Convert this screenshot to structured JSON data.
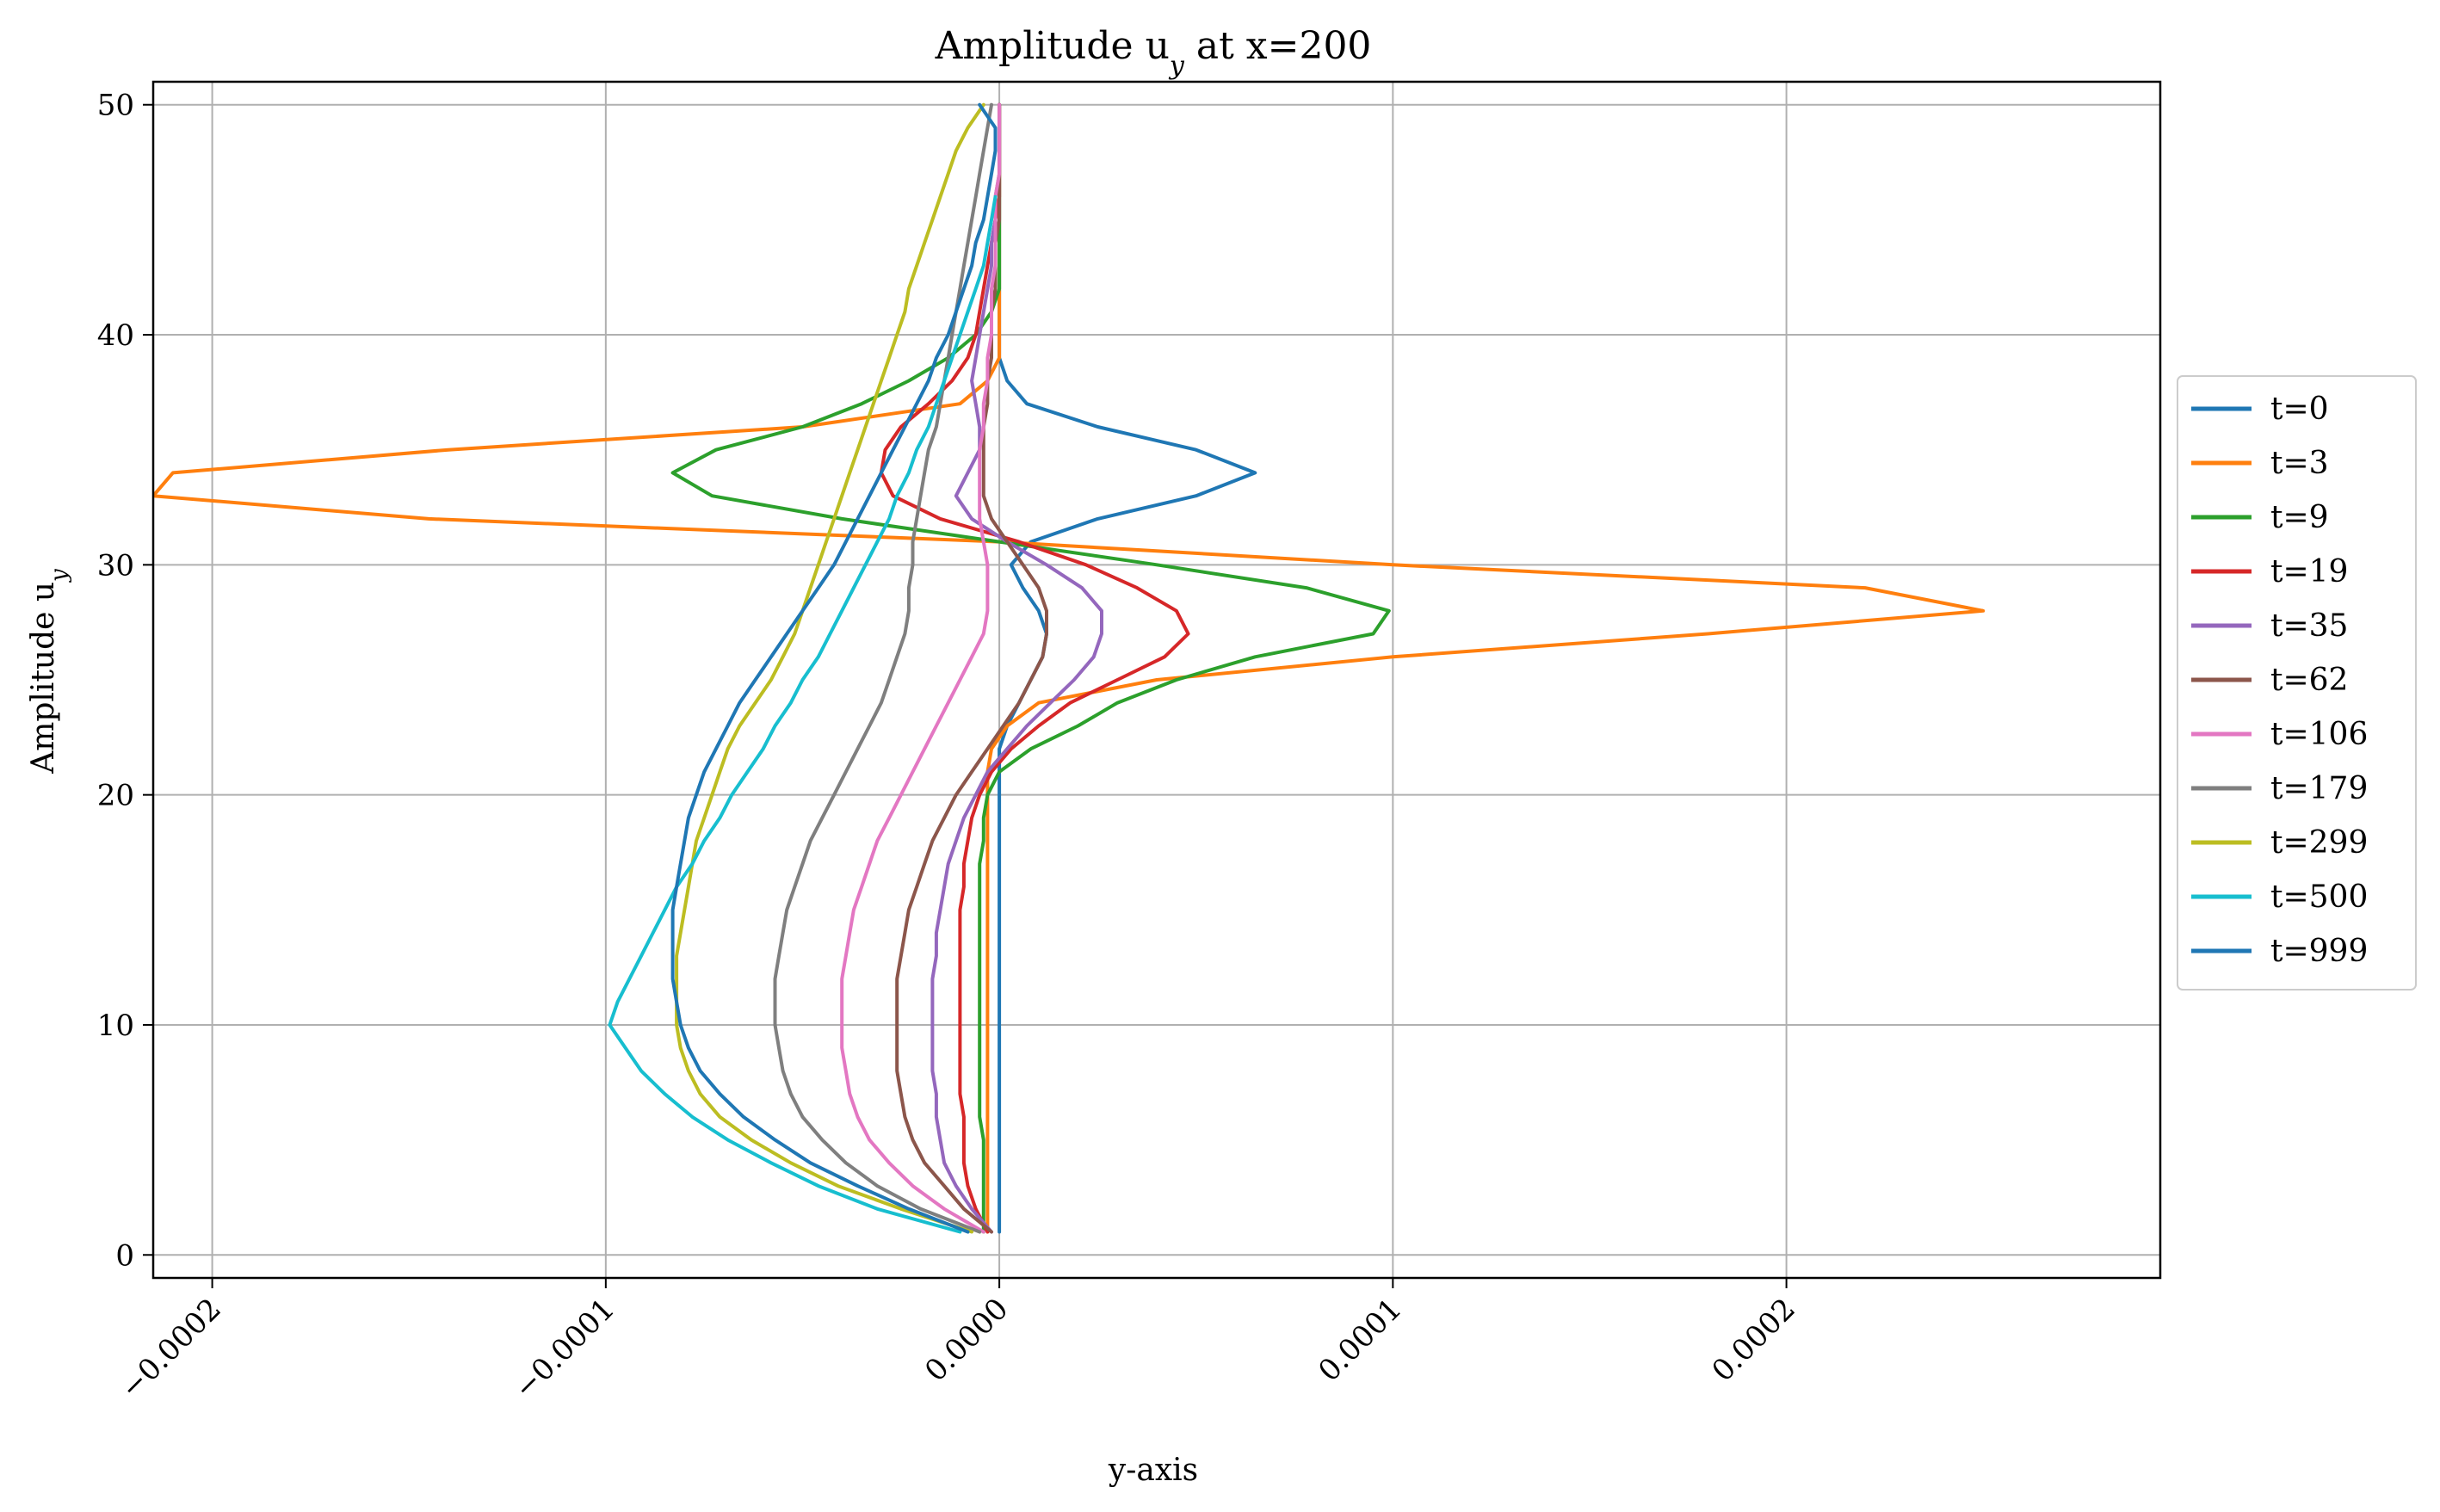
{
  "chart_data": {
    "type": "line",
    "title_main": "Amplitude u",
    "title_sub": "y",
    "title_rest": " at x=200",
    "xlabel": "y-axis",
    "ylabel_main": "Amplitude u",
    "ylabel_sub": "y",
    "xlim": [
      -0.000215,
      0.000295
    ],
    "ylim": [
      -1,
      51
    ],
    "xticks": [
      -0.0002,
      -0.0001,
      0.0,
      0.0001,
      0.0002
    ],
    "xtick_labels": [
      "−0.0002",
      "−0.0001",
      "0.0000",
      "0.0001",
      "0.0002"
    ],
    "yticks": [
      0,
      10,
      20,
      30,
      40,
      50
    ],
    "ytick_labels": [
      "0",
      "10",
      "20",
      "30",
      "40",
      "50"
    ],
    "grid": true,
    "legend_position": "center-right outside",
    "series": [
      {
        "name": "t=0",
        "color": "#1f77b4",
        "x": [
          0,
          0,
          0,
          0,
          0,
          0,
          0,
          0,
          0,
          0,
          0,
          0,
          0,
          0,
          0,
          0,
          0,
          0,
          0,
          0,
          0,
          0,
          2e-06,
          5e-06,
          8e-06,
          1.1e-05,
          1.2e-05,
          1e-05,
          6e-06,
          3e-06,
          8e-06,
          2.5e-05,
          5e-05,
          6.5e-05,
          5e-05,
          2.5e-05,
          7e-06,
          2e-06,
          0,
          0,
          0,
          0,
          0,
          0,
          0,
          0,
          0,
          0,
          0,
          0
        ],
        "y": [
          1,
          2,
          3,
          4,
          5,
          6,
          7,
          8,
          9,
          10,
          11,
          12,
          13,
          14,
          15,
          16,
          17,
          18,
          19,
          20,
          21,
          22,
          23,
          24,
          25,
          26,
          27,
          28,
          29,
          30,
          31,
          32,
          33,
          34,
          35,
          36,
          37,
          38,
          39,
          40,
          41,
          42,
          43,
          44,
          45,
          46,
          47,
          48,
          49,
          50
        ]
      },
      {
        "name": "t=3",
        "color": "#ff7f0e",
        "x": [
          -3e-06,
          -3e-06,
          -3e-06,
          -3e-06,
          -3e-06,
          -3e-06,
          -3e-06,
          -3e-06,
          -3e-06,
          -3e-06,
          -3e-06,
          -3e-06,
          -3e-06,
          -3e-06,
          -3e-06,
          -3e-06,
          -3e-06,
          -3e-06,
          -3e-06,
          -3e-06,
          -3e-06,
          -2e-06,
          2e-06,
          1e-05,
          4e-05,
          0.0001,
          0.00018,
          0.00025,
          0.00022,
          0.0001,
          0.0,
          -0.000145,
          -0.000215,
          -0.00021,
          -0.00014,
          -5e-05,
          -1e-05,
          -3e-06,
          0,
          0,
          0,
          0,
          0,
          0,
          0,
          0,
          0,
          0,
          0,
          0
        ],
        "y": [
          1,
          2,
          3,
          4,
          5,
          6,
          7,
          8,
          9,
          10,
          11,
          12,
          13,
          14,
          15,
          16,
          17,
          18,
          19,
          20,
          21,
          22,
          23,
          24,
          25,
          26,
          27,
          28,
          29,
          30,
          31,
          32,
          33,
          34,
          35,
          36,
          37,
          38,
          39,
          40,
          41,
          42,
          43,
          44,
          45,
          46,
          47,
          48,
          49,
          50
        ]
      },
      {
        "name": "t=9",
        "color": "#2ca02c",
        "x": [
          -4e-06,
          -4e-06,
          -4e-06,
          -4e-06,
          -4e-06,
          -5e-06,
          -5e-06,
          -5e-06,
          -5e-06,
          -5e-06,
          -5e-06,
          -5e-06,
          -5e-06,
          -5e-06,
          -5e-06,
          -5e-06,
          -5e-06,
          -4e-06,
          -4e-06,
          -3e-06,
          0.0,
          8e-06,
          2e-05,
          3e-05,
          4.5e-05,
          6.5e-05,
          9.5e-05,
          9.9e-05,
          7.8e-05,
          4e-05,
          0.0,
          -4e-05,
          -7.3e-05,
          -8.3e-05,
          -7.2e-05,
          -5e-05,
          -3.5e-05,
          -2.3e-05,
          -1.3e-05,
          -6e-06,
          -2e-06,
          0,
          0,
          0,
          0,
          0,
          0,
          0,
          0,
          0
        ],
        "y": [
          1,
          2,
          3,
          4,
          5,
          6,
          7,
          8,
          9,
          10,
          11,
          12,
          13,
          14,
          15,
          16,
          17,
          18,
          19,
          20,
          21,
          22,
          23,
          24,
          25,
          26,
          27,
          28,
          29,
          30,
          31,
          32,
          33,
          34,
          35,
          36,
          37,
          38,
          39,
          40,
          41,
          42,
          43,
          44,
          45,
          46,
          47,
          48,
          49,
          50
        ]
      },
      {
        "name": "t=19",
        "color": "#d62728",
        "x": [
          -3e-06,
          -6e-06,
          -8e-06,
          -9e-06,
          -9e-06,
          -9e-06,
          -1e-05,
          -1e-05,
          -1e-05,
          -1e-05,
          -1e-05,
          -1e-05,
          -1e-05,
          -1e-05,
          -1e-05,
          -9e-06,
          -9e-06,
          -8e-06,
          -7e-06,
          -5e-06,
          -2e-06,
          3e-06,
          1e-05,
          1.8e-05,
          3e-05,
          4.2e-05,
          4.8e-05,
          4.5e-05,
          3.5e-05,
          2.2e-05,
          5e-06,
          -1.5e-05,
          -2.7e-05,
          -3e-05,
          -2.9e-05,
          -2.5e-05,
          -1.8e-05,
          -1.2e-05,
          -8e-06,
          -6e-06,
          -5e-06,
          -4e-06,
          -3e-06,
          -2e-06,
          -1e-06,
          0,
          0,
          0,
          0,
          0
        ],
        "y": [
          1,
          2,
          3,
          4,
          5,
          6,
          7,
          8,
          9,
          10,
          11,
          12,
          13,
          14,
          15,
          16,
          17,
          18,
          19,
          20,
          21,
          22,
          23,
          24,
          25,
          26,
          27,
          28,
          29,
          30,
          31,
          32,
          33,
          34,
          35,
          36,
          37,
          38,
          39,
          40,
          41,
          42,
          43,
          44,
          45,
          46,
          47,
          48,
          49,
          50
        ]
      },
      {
        "name": "t=35",
        "color": "#9467bd",
        "x": [
          -2e-06,
          -7e-06,
          -1.1e-05,
          -1.4e-05,
          -1.5e-05,
          -1.6e-05,
          -1.6e-05,
          -1.7e-05,
          -1.7e-05,
          -1.7e-05,
          -1.7e-05,
          -1.7e-05,
          -1.6e-05,
          -1.6e-05,
          -1.5e-05,
          -1.4e-05,
          -1.3e-05,
          -1.1e-05,
          -9e-06,
          -6e-06,
          -3e-06,
          2e-06,
          7e-06,
          1.3e-05,
          1.9e-05,
          2.4e-05,
          2.6e-05,
          2.6e-05,
          2.1e-05,
          1.2e-05,
          2e-06,
          -7e-06,
          -1.1e-05,
          -8e-06,
          -5e-06,
          -5e-06,
          -6e-06,
          -7e-06,
          -6e-06,
          -5e-06,
          -4e-06,
          -3e-06,
          -2e-06,
          -2e-06,
          -1e-06,
          -1e-06,
          0,
          0,
          0,
          0
        ],
        "y": [
          1,
          2,
          3,
          4,
          5,
          6,
          7,
          8,
          9,
          10,
          11,
          12,
          13,
          14,
          15,
          16,
          17,
          18,
          19,
          20,
          21,
          22,
          23,
          24,
          25,
          26,
          27,
          28,
          29,
          30,
          31,
          32,
          33,
          34,
          35,
          36,
          37,
          38,
          39,
          40,
          41,
          42,
          43,
          44,
          45,
          46,
          47,
          48,
          49,
          50
        ]
      },
      {
        "name": "t=62",
        "color": "#8c564b",
        "x": [
          -2e-06,
          -9e-06,
          -1.4e-05,
          -1.9e-05,
          -2.2e-05,
          -2.4e-05,
          -2.5e-05,
          -2.6e-05,
          -2.6e-05,
          -2.6e-05,
          -2.6e-05,
          -2.6e-05,
          -2.5e-05,
          -2.4e-05,
          -2.3e-05,
          -2.1e-05,
          -1.9e-05,
          -1.7e-05,
          -1.4e-05,
          -1.1e-05,
          -7e-06,
          -3e-06,
          1e-06,
          5e-06,
          8e-06,
          1.1e-05,
          1.2e-05,
          1.2e-05,
          1e-05,
          6e-06,
          2e-06,
          -2e-06,
          -4e-06,
          -4e-06,
          -4e-06,
          -4e-06,
          -3e-06,
          -3e-06,
          -2e-06,
          -2e-06,
          -2e-06,
          -1e-06,
          -1e-06,
          -1e-06,
          0,
          0,
          0,
          0,
          0,
          0
        ],
        "y": [
          1,
          2,
          3,
          4,
          5,
          6,
          7,
          8,
          9,
          10,
          11,
          12,
          13,
          14,
          15,
          16,
          17,
          18,
          19,
          20,
          21,
          22,
          23,
          24,
          25,
          26,
          27,
          28,
          29,
          30,
          31,
          32,
          33,
          34,
          35,
          36,
          37,
          38,
          39,
          40,
          41,
          42,
          43,
          44,
          45,
          46,
          47,
          48,
          49,
          50
        ]
      },
      {
        "name": "t=106",
        "color": "#e377c2",
        "x": [
          -4e-06,
          -1.4e-05,
          -2.2e-05,
          -2.8e-05,
          -3.3e-05,
          -3.6e-05,
          -3.8e-05,
          -3.9e-05,
          -4e-05,
          -4e-05,
          -4e-05,
          -4e-05,
          -3.9e-05,
          -3.8e-05,
          -3.7e-05,
          -3.5e-05,
          -3.3e-05,
          -3.1e-05,
          -2.8e-05,
          -2.5e-05,
          -2.2e-05,
          -1.9e-05,
          -1.6e-05,
          -1.3e-05,
          -1e-05,
          -7e-06,
          -4e-06,
          -3e-06,
          -3e-06,
          -3e-06,
          -4e-06,
          -5e-06,
          -5e-06,
          -5e-06,
          -5e-06,
          -4e-06,
          -4e-06,
          -3e-06,
          -3e-06,
          -2e-06,
          -2e-06,
          -2e-06,
          -1e-06,
          -1e-06,
          -1e-06,
          -1e-06,
          0,
          0,
          0,
          0
        ],
        "y": [
          1,
          2,
          3,
          4,
          5,
          6,
          7,
          8,
          9,
          10,
          11,
          12,
          13,
          14,
          15,
          16,
          17,
          18,
          19,
          20,
          21,
          22,
          23,
          24,
          25,
          26,
          27,
          28,
          29,
          30,
          31,
          32,
          33,
          34,
          35,
          36,
          37,
          38,
          39,
          40,
          41,
          42,
          43,
          44,
          45,
          46,
          47,
          48,
          49,
          50
        ]
      },
      {
        "name": "t=179",
        "color": "#7f7f7f",
        "x": [
          -5e-06,
          -2e-05,
          -3.1e-05,
          -3.9e-05,
          -4.5e-05,
          -5e-05,
          -5.3e-05,
          -5.5e-05,
          -5.6e-05,
          -5.7e-05,
          -5.7e-05,
          -5.7e-05,
          -5.6e-05,
          -5.5e-05,
          -5.4e-05,
          -5.2e-05,
          -5e-05,
          -4.8e-05,
          -4.5e-05,
          -4.2e-05,
          -3.9e-05,
          -3.6e-05,
          -3.3e-05,
          -3e-05,
          -2.8e-05,
          -2.6e-05,
          -2.4e-05,
          -2.3e-05,
          -2.3e-05,
          -2.2e-05,
          -2.2e-05,
          -2.1e-05,
          -2e-05,
          -1.9e-05,
          -1.8e-05,
          -1.6e-05,
          -1.5e-05,
          -1.4e-05,
          -1.3e-05,
          -1.2e-05,
          -1.1e-05,
          -1e-05,
          -9e-06,
          -8e-06,
          -7e-06,
          -6e-06,
          -5e-06,
          -4e-06,
          -3e-06,
          -2e-06
        ],
        "y": [
          1,
          2,
          3,
          4,
          5,
          6,
          7,
          8,
          9,
          10,
          11,
          12,
          13,
          14,
          15,
          16,
          17,
          18,
          19,
          20,
          21,
          22,
          23,
          24,
          25,
          26,
          27,
          28,
          29,
          30,
          31,
          32,
          33,
          34,
          35,
          36,
          37,
          38,
          39,
          40,
          41,
          42,
          43,
          44,
          45,
          46,
          47,
          48,
          49,
          50
        ]
      },
      {
        "name": "t=299",
        "color": "#bcbd22",
        "x": [
          -7e-06,
          -2.5e-05,
          -4.1e-05,
          -5.3e-05,
          -6.3e-05,
          -7.1e-05,
          -7.6e-05,
          -7.9e-05,
          -8.1e-05,
          -8.2e-05,
          -8.2e-05,
          -8.2e-05,
          -8.2e-05,
          -8.1e-05,
          -8e-05,
          -7.9e-05,
          -7.8e-05,
          -7.7e-05,
          -7.5e-05,
          -7.3e-05,
          -7.1e-05,
          -6.9e-05,
          -6.6e-05,
          -6.2e-05,
          -5.8e-05,
          -5.5e-05,
          -5.2e-05,
          -5e-05,
          -4.8e-05,
          -4.6e-05,
          -4.4e-05,
          -4.2e-05,
          -4e-05,
          -3.8e-05,
          -3.6e-05,
          -3.4e-05,
          -3.2e-05,
          -3e-05,
          -2.8e-05,
          -2.6e-05,
          -2.4e-05,
          -2.3e-05,
          -2.1e-05,
          -1.9e-05,
          -1.7e-05,
          -1.5e-05,
          -1.3e-05,
          -1.1e-05,
          -8e-06,
          -4e-06
        ],
        "y": [
          1,
          2,
          3,
          4,
          5,
          6,
          7,
          8,
          9,
          10,
          11,
          12,
          13,
          14,
          15,
          16,
          17,
          18,
          19,
          20,
          21,
          22,
          23,
          24,
          25,
          26,
          27,
          28,
          29,
          30,
          31,
          32,
          33,
          34,
          35,
          36,
          37,
          38,
          39,
          40,
          41,
          42,
          43,
          44,
          45,
          46,
          47,
          48,
          49,
          50
        ]
      },
      {
        "name": "t=500",
        "color": "#17becf",
        "x": [
          -1e-05,
          -3.1e-05,
          -4.6e-05,
          -5.8e-05,
          -6.9e-05,
          -7.8e-05,
          -8.5e-05,
          -9.1e-05,
          -9.5e-05,
          -9.9e-05,
          -9.7e-05,
          -9.4e-05,
          -9.1e-05,
          -8.8e-05,
          -8.5e-05,
          -8.2e-05,
          -7.8e-05,
          -7.5e-05,
          -7.1e-05,
          -6.8e-05,
          -6.4e-05,
          -6e-05,
          -5.7e-05,
          -5.3e-05,
          -5e-05,
          -4.6e-05,
          -4.3e-05,
          -4e-05,
          -3.7e-05,
          -3.4e-05,
          -3.1e-05,
          -2.8e-05,
          -2.6e-05,
          -2.3e-05,
          -2.1e-05,
          -1.8e-05,
          -1.6e-05,
          -1.4e-05,
          -1.2e-05,
          -1e-05,
          -8e-06,
          -6e-06,
          -4e-06,
          -3e-06,
          -2e-06,
          -1e-06
        ],
        "y": [
          1,
          2,
          3,
          4,
          5,
          6,
          7,
          8,
          9,
          10,
          11,
          12,
          13,
          14,
          15,
          16,
          17,
          18,
          19,
          20,
          21,
          22,
          23,
          24,
          25,
          26,
          27,
          28,
          29,
          30,
          31,
          32,
          33,
          34,
          35,
          36,
          37,
          38,
          39,
          40,
          41,
          42,
          43,
          44,
          45,
          46
        ]
      },
      {
        "name": "t=999",
        "color": "#1f77b4",
        "x": [
          -8e-06,
          -2.3e-05,
          -3.6e-05,
          -4.8e-05,
          -5.7e-05,
          -6.5e-05,
          -7.1e-05,
          -7.6e-05,
          -7.9e-05,
          -8.1e-05,
          -8.2e-05,
          -8.3e-05,
          -8.3e-05,
          -8.3e-05,
          -8.3e-05,
          -8.2e-05,
          -8.1e-05,
          -8e-05,
          -7.9e-05,
          -7.7e-05,
          -7.5e-05,
          -7.2e-05,
          -6.9e-05,
          -6.6e-05,
          -6.2e-05,
          -5.8e-05,
          -5.4e-05,
          -5e-05,
          -4.6e-05,
          -4.2e-05,
          -3.9e-05,
          -3.6e-05,
          -3.3e-05,
          -3e-05,
          -2.7e-05,
          -2.4e-05,
          -2.1e-05,
          -1.8e-05,
          -1.6e-05,
          -1.3e-05,
          -1.1e-05,
          -9e-06,
          -7e-06,
          -6e-06,
          -4e-06,
          -3e-06,
          -2e-06,
          -1e-06,
          -1e-06,
          -5e-06
        ],
        "y": [
          1,
          2,
          3,
          4,
          5,
          6,
          7,
          8,
          9,
          10,
          11,
          12,
          13,
          14,
          15,
          16,
          17,
          18,
          19,
          20,
          21,
          22,
          23,
          24,
          25,
          26,
          27,
          28,
          29,
          30,
          31,
          32,
          33,
          34,
          35,
          36,
          37,
          38,
          39,
          40,
          41,
          42,
          43,
          44,
          45,
          46,
          47,
          48,
          49,
          50
        ]
      }
    ]
  }
}
